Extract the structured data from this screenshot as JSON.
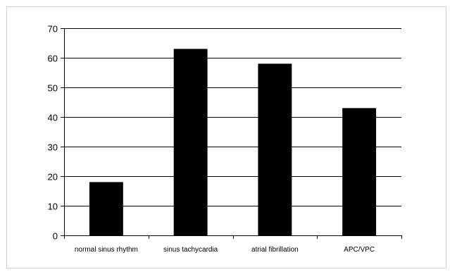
{
  "chart_data": {
    "type": "bar",
    "categories": [
      "normal sinus rhythm",
      "sinus tachycardia",
      "atrial fibrillation",
      "APC/VPC"
    ],
    "values": [
      18,
      63,
      58,
      43
    ],
    "title": "",
    "xlabel": "",
    "ylabel": "",
    "ylim": [
      0,
      70
    ],
    "yticks": [
      0,
      10,
      20,
      30,
      40,
      50,
      60,
      70
    ],
    "ytick_labels": [
      "0",
      "10",
      "20",
      "30",
      "40",
      "50",
      "60",
      "70"
    ],
    "grid": true,
    "legend": "none",
    "bar_color": "#000000",
    "grid_color": "#000000"
  }
}
